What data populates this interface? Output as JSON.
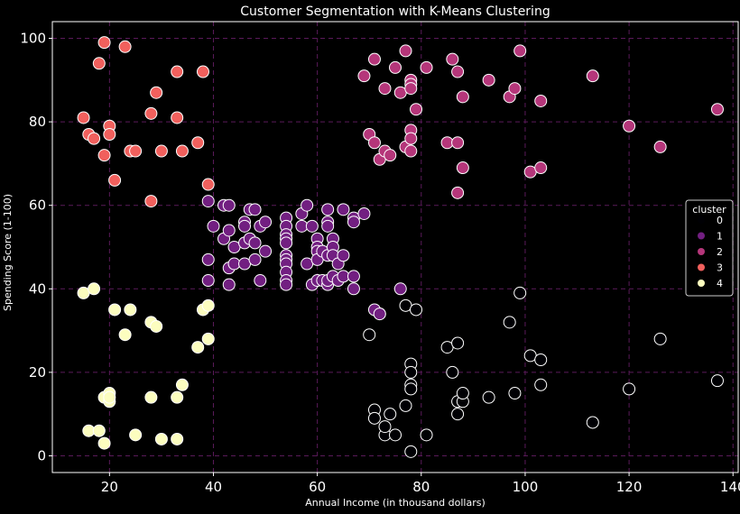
{
  "chart_data": {
    "type": "scatter",
    "title": "Customer Segmentation with K-Means Clustering",
    "xlabel": "Annual Income (in thousand dollars)",
    "ylabel": "Spending Score (1-100)",
    "xlim": [
      9,
      141
    ],
    "ylim": [
      -4,
      104
    ],
    "xticks": [
      20,
      40,
      60,
      80,
      100,
      120,
      140
    ],
    "yticks": [
      0,
      20,
      40,
      60,
      80,
      100
    ],
    "grid": true,
    "legend": {
      "title": "cluster",
      "entries": [
        "0",
        "1",
        "2",
        "3",
        "4"
      ],
      "placement": "right"
    },
    "colors": {
      "background": "#000000",
      "grid": "#5a1a5a",
      "cluster_0": "#000004",
      "cluster_1": "#721f81",
      "cluster_2": "#b5367a",
      "cluster_3": "#f1605d",
      "cluster_4": "#fcfdbf",
      "marker_edge": "#ffffff"
    },
    "series": [
      {
        "name": "0",
        "points": [
          [
            70,
            29
          ],
          [
            71,
            11
          ],
          [
            71,
            9
          ],
          [
            72,
            34
          ],
          [
            73,
            5
          ],
          [
            73,
            7
          ],
          [
            74,
            10
          ],
          [
            75,
            5
          ],
          [
            77,
            12
          ],
          [
            77,
            36
          ],
          [
            78,
            22
          ],
          [
            78,
            20
          ],
          [
            78,
            17
          ],
          [
            78,
            16
          ],
          [
            78,
            1
          ],
          [
            79,
            35
          ],
          [
            81,
            5
          ],
          [
            85,
            26
          ],
          [
            86,
            20
          ],
          [
            87,
            27
          ],
          [
            87,
            13
          ],
          [
            87,
            10
          ],
          [
            88,
            13
          ],
          [
            88,
            15
          ],
          [
            93,
            14
          ],
          [
            97,
            32
          ],
          [
            98,
            15
          ],
          [
            99,
            39
          ],
          [
            101,
            24
          ],
          [
            103,
            23
          ],
          [
            103,
            17
          ],
          [
            113,
            8
          ],
          [
            120,
            16
          ],
          [
            126,
            28
          ],
          [
            137,
            18
          ]
        ]
      },
      {
        "name": "1",
        "points": [
          [
            39,
            61
          ],
          [
            39,
            47
          ],
          [
            39,
            42
          ],
          [
            40,
            55
          ],
          [
            42,
            60
          ],
          [
            42,
            52
          ],
          [
            43,
            60
          ],
          [
            43,
            54
          ],
          [
            43,
            45
          ],
          [
            43,
            41
          ],
          [
            44,
            50
          ],
          [
            44,
            46
          ],
          [
            46,
            51
          ],
          [
            46,
            46
          ],
          [
            46,
            56
          ],
          [
            46,
            55
          ],
          [
            47,
            52
          ],
          [
            47,
            59
          ],
          [
            48,
            59
          ],
          [
            48,
            51
          ],
          [
            48,
            47
          ],
          [
            49,
            55
          ],
          [
            49,
            42
          ],
          [
            50,
            56
          ],
          [
            50,
            49
          ],
          [
            54,
            57
          ],
          [
            54,
            55
          ],
          [
            54,
            53
          ],
          [
            54,
            52
          ],
          [
            54,
            51
          ],
          [
            54,
            48
          ],
          [
            54,
            47
          ],
          [
            54,
            46
          ],
          [
            54,
            44
          ],
          [
            54,
            42
          ],
          [
            54,
            41
          ],
          [
            57,
            58
          ],
          [
            57,
            55
          ],
          [
            58,
            60
          ],
          [
            58,
            46
          ],
          [
            59,
            55
          ],
          [
            59,
            41
          ],
          [
            60,
            52
          ],
          [
            60,
            50
          ],
          [
            60,
            49
          ],
          [
            60,
            47
          ],
          [
            60,
            42
          ],
          [
            61,
            42
          ],
          [
            61,
            49
          ],
          [
            62,
            59
          ],
          [
            62,
            56
          ],
          [
            62,
            55
          ],
          [
            62,
            48
          ],
          [
            62,
            41
          ],
          [
            62,
            42
          ],
          [
            63,
            52
          ],
          [
            63,
            50
          ],
          [
            63,
            48
          ],
          [
            63,
            43
          ],
          [
            64,
            42
          ],
          [
            64,
            46
          ],
          [
            65,
            59
          ],
          [
            65,
            48
          ],
          [
            65,
            43
          ],
          [
            67,
            57
          ],
          [
            67,
            56
          ],
          [
            67,
            43
          ],
          [
            67,
            40
          ],
          [
            69,
            58
          ],
          [
            71,
            35
          ],
          [
            72,
            34
          ],
          [
            76,
            40
          ]
        ]
      },
      {
        "name": "2",
        "points": [
          [
            69,
            91
          ],
          [
            70,
            77
          ],
          [
            71,
            95
          ],
          [
            71,
            75
          ],
          [
            72,
            71
          ],
          [
            73,
            88
          ],
          [
            73,
            73
          ],
          [
            74,
            72
          ],
          [
            75,
            93
          ],
          [
            76,
            87
          ],
          [
            77,
            97
          ],
          [
            77,
            74
          ],
          [
            78,
            90
          ],
          [
            78,
            89
          ],
          [
            78,
            88
          ],
          [
            78,
            78
          ],
          [
            78,
            76
          ],
          [
            78,
            73
          ],
          [
            79,
            83
          ],
          [
            81,
            93
          ],
          [
            85,
            75
          ],
          [
            86,
            95
          ],
          [
            87,
            92
          ],
          [
            87,
            75
          ],
          [
            87,
            63
          ],
          [
            88,
            86
          ],
          [
            88,
            69
          ],
          [
            93,
            90
          ],
          [
            97,
            86
          ],
          [
            98,
            88
          ],
          [
            99,
            97
          ],
          [
            101,
            68
          ],
          [
            103,
            85
          ],
          [
            103,
            69
          ],
          [
            113,
            91
          ],
          [
            120,
            79
          ],
          [
            126,
            74
          ],
          [
            137,
            83
          ]
        ]
      },
      {
        "name": "3",
        "points": [
          [
            15,
            81
          ],
          [
            16,
            77
          ],
          [
            17,
            76
          ],
          [
            18,
            94
          ],
          [
            19,
            99
          ],
          [
            19,
            72
          ],
          [
            20,
            79
          ],
          [
            20,
            77
          ],
          [
            21,
            66
          ],
          [
            23,
            98
          ],
          [
            24,
            73
          ],
          [
            25,
            73
          ],
          [
            28,
            82
          ],
          [
            28,
            61
          ],
          [
            29,
            87
          ],
          [
            30,
            73
          ],
          [
            33,
            92
          ],
          [
            33,
            81
          ],
          [
            34,
            73
          ],
          [
            37,
            75
          ],
          [
            38,
            92
          ],
          [
            39,
            65
          ]
        ]
      },
      {
        "name": "4",
        "points": [
          [
            15,
            39
          ],
          [
            16,
            6
          ],
          [
            17,
            40
          ],
          [
            18,
            6
          ],
          [
            19,
            3
          ],
          [
            19,
            14
          ],
          [
            20,
            15
          ],
          [
            20,
            13
          ],
          [
            20,
            14
          ],
          [
            21,
            35
          ],
          [
            23,
            29
          ],
          [
            24,
            35
          ],
          [
            25,
            5
          ],
          [
            28,
            32
          ],
          [
            28,
            14
          ],
          [
            29,
            31
          ],
          [
            30,
            4
          ],
          [
            33,
            14
          ],
          [
            33,
            4
          ],
          [
            34,
            17
          ],
          [
            37,
            26
          ],
          [
            38,
            35
          ],
          [
            39,
            36
          ],
          [
            39,
            28
          ]
        ]
      }
    ]
  }
}
